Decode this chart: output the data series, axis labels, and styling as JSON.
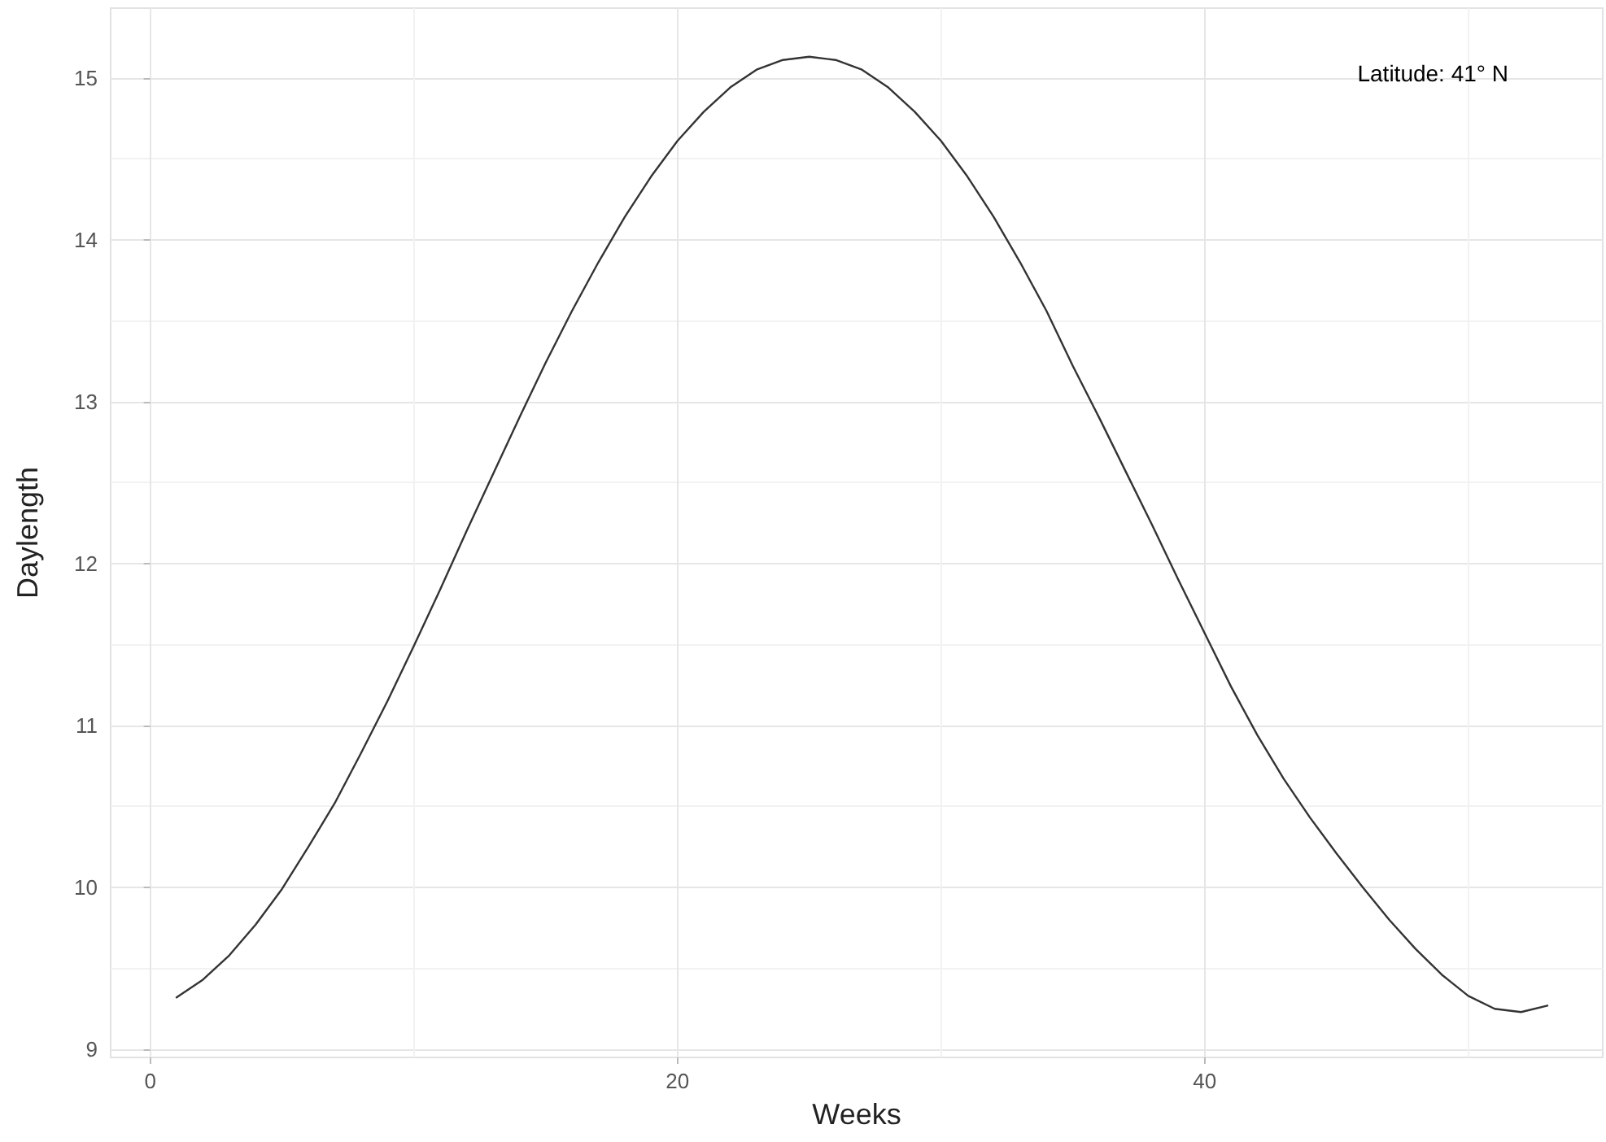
{
  "chart_data": {
    "type": "line",
    "xlabel": "Weeks",
    "ylabel": "Daylength",
    "annotations": [
      "Latitude: 41° N"
    ],
    "x": [
      1,
      2,
      3,
      4,
      5,
      6,
      7,
      8,
      9,
      10,
      11,
      12,
      13,
      14,
      15,
      16,
      17,
      18,
      19,
      20,
      21,
      22,
      23,
      24,
      25,
      26,
      27,
      28,
      29,
      30,
      31,
      32,
      33,
      34,
      35,
      36,
      37,
      38,
      39,
      40,
      41,
      42,
      43,
      44,
      45,
      46,
      47,
      48,
      49,
      50,
      51,
      52,
      53
    ],
    "series": [
      {
        "color": "#333333",
        "values": [
          9.32,
          9.43,
          9.58,
          9.77,
          9.99,
          10.25,
          10.52,
          10.83,
          11.15,
          11.49,
          11.84,
          12.2,
          12.55,
          12.9,
          13.24,
          13.56,
          13.86,
          14.14,
          14.39,
          14.61,
          14.79,
          14.94,
          15.05,
          15.11,
          15.13,
          15.11,
          15.05,
          14.94,
          14.79,
          14.61,
          14.39,
          14.14,
          13.86,
          13.56,
          13.22,
          12.9,
          12.57,
          12.24,
          11.9,
          11.57,
          11.24,
          10.94,
          10.67,
          10.43,
          10.21,
          10.0,
          9.8,
          9.62,
          9.46,
          9.33,
          9.25,
          9.23,
          9.27
        ]
      }
    ],
    "xlim": [
      -1.5,
      55.1
    ],
    "xticks": [
      0,
      20,
      40
    ],
    "ylim": [
      8.95,
      15.43
    ],
    "yticks": [
      9,
      10,
      11,
      12,
      13,
      14,
      15
    ],
    "grid": true,
    "marker": "none",
    "line_style": "solid"
  }
}
